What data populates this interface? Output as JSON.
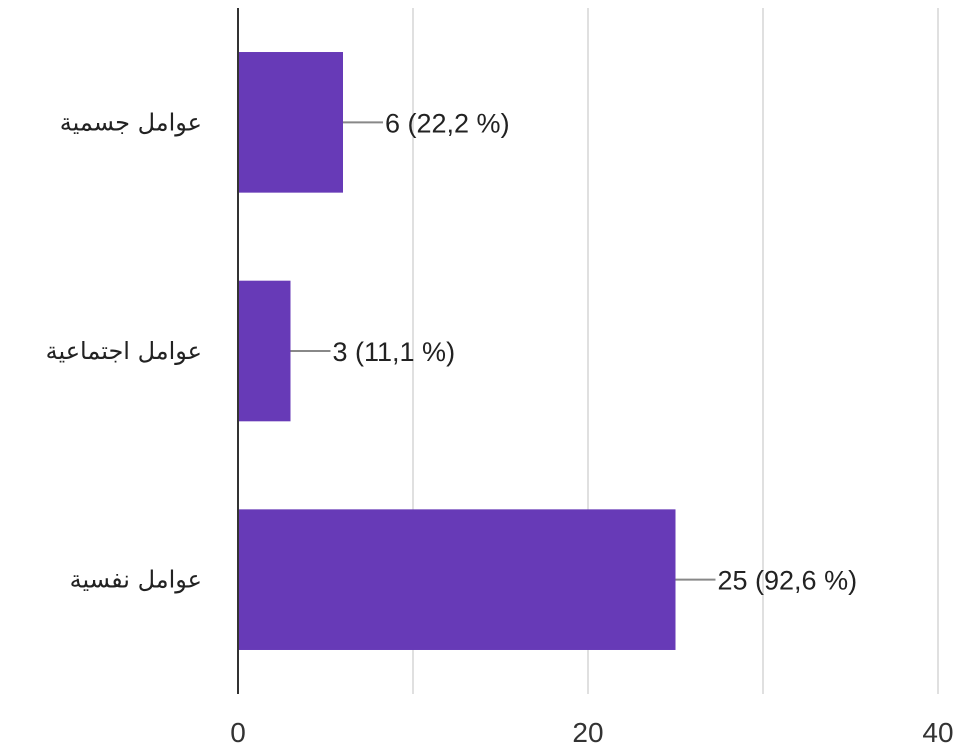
{
  "chart_data": {
    "type": "bar",
    "orientation": "horizontal",
    "categories": [
      "عوامل جسمية",
      "عوامل اجتماعية",
      "عوامل نفسية"
    ],
    "values": [
      6,
      3,
      25
    ],
    "percent_labels": [
      "6 (22,2 %)",
      "3 (11,1 %)",
      "25 (92,6 %)"
    ],
    "xlim": [
      0,
      40
    ],
    "x_ticks": [
      0,
      20,
      40
    ],
    "x_tick_labels": [
      "0",
      "20",
      "40"
    ],
    "grid": true,
    "bar_color": "#673ab7",
    "title": "",
    "xlabel": "",
    "ylabel": ""
  }
}
